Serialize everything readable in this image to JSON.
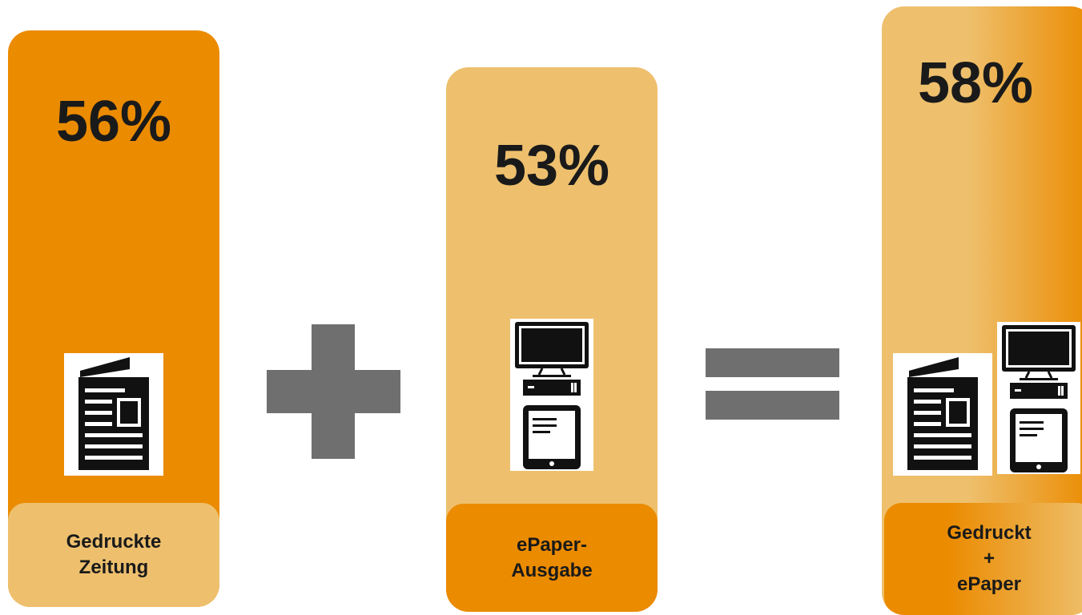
{
  "columns": [
    {
      "percent": "56%",
      "caption_line1": "Gedruckte",
      "caption_line2": "Zeitung"
    },
    {
      "percent": "53%",
      "caption_line1": "ePaper-",
      "caption_line2": "Ausgabe"
    },
    {
      "percent": "58%",
      "caption_line1": "Gedruckt",
      "caption_line2": "+",
      "caption_line3": "ePaper"
    }
  ],
  "operators": {
    "first": "+",
    "second": "="
  },
  "colors": {
    "orange": "#eb8b00",
    "light_orange": "#eec06e",
    "operator_gray": "#6f6f6f",
    "icon_black": "#111111"
  },
  "icons": [
    "newspaper-icon",
    "monitor-icon",
    "tablet-icon"
  ]
}
